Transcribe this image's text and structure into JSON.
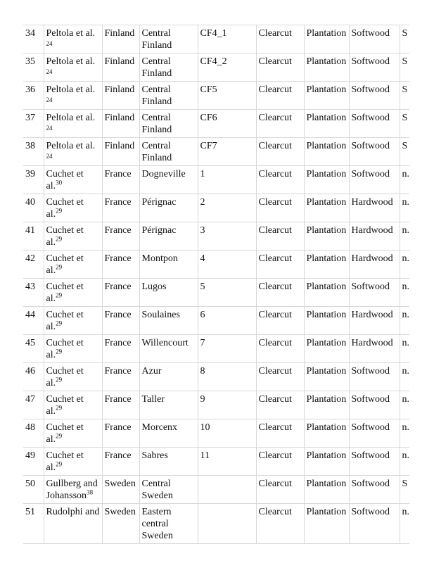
{
  "rows": [
    {
      "no": "34",
      "author": "Peltola et al.",
      "ref": "24",
      "country": "Finland",
      "region": "Central Finland",
      "site": "CF4_1",
      "harvest": "Clearcut",
      "forest": "Plantation",
      "wood": "Softwood",
      "last": "S"
    },
    {
      "no": "35",
      "author": "Peltola et al.",
      "ref": "24",
      "country": "Finland",
      "region": "Central Finland",
      "site": "CF4_2",
      "harvest": "Clearcut",
      "forest": "Plantation",
      "wood": "Softwood",
      "last": "S"
    },
    {
      "no": "36",
      "author": "Peltola et al.",
      "ref": "24",
      "country": "Finland",
      "region": "Central Finland",
      "site": "CF5",
      "harvest": "Clearcut",
      "forest": "Plantation",
      "wood": "Softwood",
      "last": "S"
    },
    {
      "no": "37",
      "author": "Peltola et al.",
      "ref": "24",
      "country": "Finland",
      "region": "Central Finland",
      "site": "CF6",
      "harvest": "Clearcut",
      "forest": "Plantation",
      "wood": "Softwood",
      "last": "S"
    },
    {
      "no": "38",
      "author": "Peltola et al.",
      "ref": "24",
      "country": "Finland",
      "region": "Central Finland",
      "site": "CF7",
      "harvest": "Clearcut",
      "forest": "Plantation",
      "wood": "Softwood",
      "last": "S"
    },
    {
      "no": "39",
      "author": "Cuchet et al.",
      "ref": "30",
      "country": "France",
      "region": "Dogneville",
      "site": "1",
      "harvest": "Clearcut",
      "forest": "Plantation",
      "wood": "Softwood",
      "last": "n."
    },
    {
      "no": "40",
      "author": "Cuchet et al.",
      "ref": "29",
      "country": "France",
      "region": "Pérignac",
      "site": "2",
      "harvest": "Clearcut",
      "forest": "Plantation",
      "wood": "Hardwood",
      "last": "n."
    },
    {
      "no": "41",
      "author": "Cuchet et al.",
      "ref": "29",
      "country": "France",
      "region": "Pérignac",
      "site": "3",
      "harvest": "Clearcut",
      "forest": "Plantation",
      "wood": "Hardwood",
      "last": "n."
    },
    {
      "no": "42",
      "author": "Cuchet et al.",
      "ref": "29",
      "country": "France",
      "region": "Montpon",
      "site": "4",
      "harvest": "Clearcut",
      "forest": "Plantation",
      "wood": "Hardwood",
      "last": "n."
    },
    {
      "no": "43",
      "author": "Cuchet et al.",
      "ref": "29",
      "country": "France",
      "region": "Lugos",
      "site": "5",
      "harvest": "Clearcut",
      "forest": "Plantation",
      "wood": "Softwood",
      "last": "n."
    },
    {
      "no": "44",
      "author": "Cuchet et al.",
      "ref": "29",
      "country": "France",
      "region": "Soulaines",
      "site": "6",
      "harvest": "Clearcut",
      "forest": "Plantation",
      "wood": "Hardwood",
      "last": "n."
    },
    {
      "no": "45",
      "author": "Cuchet et al.",
      "ref": "29",
      "country": "France",
      "region": "Willencourt",
      "site": "7",
      "harvest": "Clearcut",
      "forest": "Plantation",
      "wood": "Hardwood",
      "last": "n."
    },
    {
      "no": "46",
      "author": "Cuchet et al.",
      "ref": "29",
      "country": "France",
      "region": "Azur",
      "site": "8",
      "harvest": "Clearcut",
      "forest": "Plantation",
      "wood": "Softwood",
      "last": "n."
    },
    {
      "no": "47",
      "author": "Cuchet et al.",
      "ref": "29",
      "country": "France",
      "region": "Taller",
      "site": "9",
      "harvest": "Clearcut",
      "forest": "Plantation",
      "wood": "Softwood",
      "last": "n."
    },
    {
      "no": "48",
      "author": "Cuchet et al.",
      "ref": "29",
      "country": "France",
      "region": "Morcenx",
      "site": "10",
      "harvest": "Clearcut",
      "forest": "Plantation",
      "wood": "Softwood",
      "last": "n."
    },
    {
      "no": "49",
      "author": "Cuchet et al.",
      "ref": "29",
      "country": "France",
      "region": "Sabres",
      "site": "11",
      "harvest": "Clearcut",
      "forest": "Plantation",
      "wood": "Softwood",
      "last": "n."
    },
    {
      "no": "50",
      "author": "Gullberg and Johansson",
      "ref": "38",
      "country": "Sweden",
      "region": "Central Sweden",
      "site": "",
      "harvest": "Clearcut",
      "forest": "Plantation",
      "wood": "Softwood",
      "last": "S (a"
    },
    {
      "no": "51",
      "author": "Rudolphi and",
      "ref": "",
      "country": "Sweden",
      "region": "Eastern central Sweden",
      "site": "",
      "harvest": "Clearcut",
      "forest": "Plantation",
      "wood": "Softwood",
      "last": "n."
    }
  ]
}
